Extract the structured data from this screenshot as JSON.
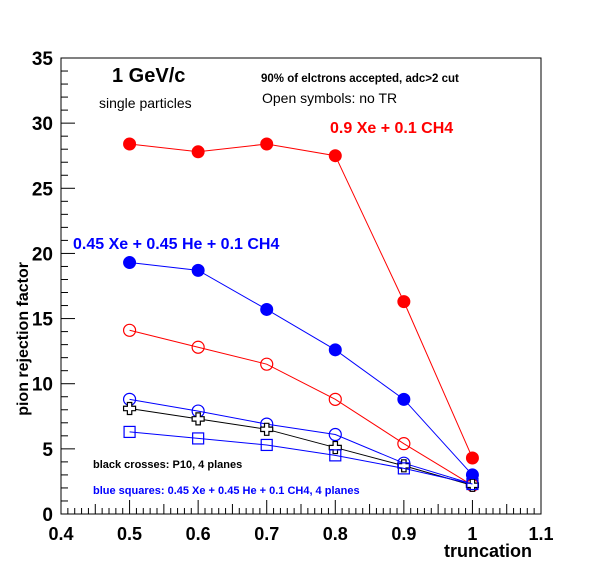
{
  "chart_data": {
    "type": "line",
    "xlabel": "truncation",
    "ylabel": "pion rejection factor",
    "xlim": [
      0.4,
      1.1
    ],
    "ylim": [
      0,
      35
    ],
    "x_ticks": [
      0.4,
      0.5,
      0.6,
      0.7,
      0.8,
      0.9,
      1.0,
      1.1
    ],
    "x_tick_labels": [
      "0.4",
      "0.5",
      "0.6",
      "0.7",
      "0.8",
      "0.9",
      "1",
      "1.1"
    ],
    "y_ticks": [
      0,
      5,
      10,
      15,
      20,
      25,
      30,
      35
    ],
    "y_tick_labels": [
      "0",
      "5",
      "10",
      "15",
      "20",
      "25",
      "30",
      "35"
    ],
    "grid": false,
    "annotations": [
      {
        "id": "momentum",
        "text": "1 GeV/c",
        "color": "#000000"
      },
      {
        "id": "particles",
        "text": "single particles",
        "color": "#000000"
      },
      {
        "id": "acceptance",
        "text": "90% of elctrons accepted, adc>2 cut",
        "color": "#000000"
      },
      {
        "id": "open-symbols",
        "text": "Open symbols: no TR",
        "color": "#000000"
      },
      {
        "id": "xe-ch4",
        "text": "0.9 Xe + 0.1 CH4",
        "color": "#ff0000"
      },
      {
        "id": "xe-he-ch4",
        "text": "0.45 Xe + 0.45 He + 0.1 CH4",
        "color": "#0000ff"
      },
      {
        "id": "crosses",
        "text": "black crosses: P10, 4 planes",
        "color": "#000000"
      },
      {
        "id": "squares",
        "text": "blue squares: 0.45 Xe + 0.45 He + 0.1 CH4, 4 planes",
        "color": "#0000ff"
      }
    ],
    "x": [
      0.5,
      0.6,
      0.7,
      0.8,
      0.9,
      1.0
    ],
    "series": [
      {
        "key": "xe-ch4-tr",
        "marker": "filled-circle",
        "color": "#ff0000",
        "values": [
          28.4,
          27.8,
          28.4,
          27.5,
          16.3,
          4.3
        ]
      },
      {
        "key": "xe-he-ch4-tr",
        "marker": "filled-circle",
        "color": "#0000ff",
        "values": [
          19.3,
          18.7,
          15.7,
          12.6,
          8.8,
          3.0
        ]
      },
      {
        "key": "xe-ch4-notr",
        "marker": "open-circle",
        "color": "#ff0000",
        "values": [
          14.1,
          12.8,
          11.5,
          8.8,
          5.4,
          2.2
        ]
      },
      {
        "key": "xe-he-ch4-notr",
        "marker": "open-circle",
        "color": "#0000ff",
        "values": [
          8.8,
          7.9,
          6.9,
          6.1,
          3.9,
          2.3
        ]
      },
      {
        "key": "p10-4planes",
        "marker": "open-cross",
        "color": "#000000",
        "values": [
          8.1,
          7.3,
          6.5,
          5.1,
          3.7,
          2.2
        ]
      },
      {
        "key": "xe-he-ch4-4planes",
        "marker": "open-square",
        "color": "#0000ff",
        "values": [
          6.3,
          5.8,
          5.3,
          4.5,
          3.5,
          2.3
        ]
      }
    ]
  }
}
